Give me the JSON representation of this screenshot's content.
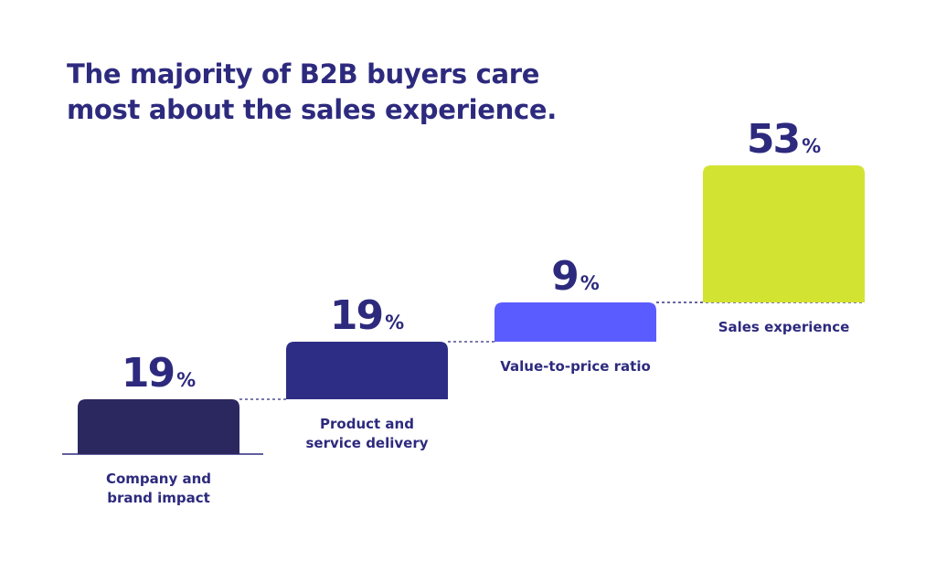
{
  "chart_data": {
    "type": "bar",
    "title_lines": [
      "The majority of B2B buyers care",
      "most about the sales experience."
    ],
    "categories": [
      [
        "Company and",
        "brand impact"
      ],
      [
        "Product and",
        "service delivery"
      ],
      [
        "Value-to-price ratio"
      ],
      [
        "Sales experience"
      ]
    ],
    "values": [
      19,
      19,
      9,
      53
    ],
    "value_unit": "%",
    "colors": [
      "#2b2860",
      "#2d2d85",
      "#5b5cff",
      "#d3e331"
    ],
    "grid": false,
    "legend": "none"
  }
}
